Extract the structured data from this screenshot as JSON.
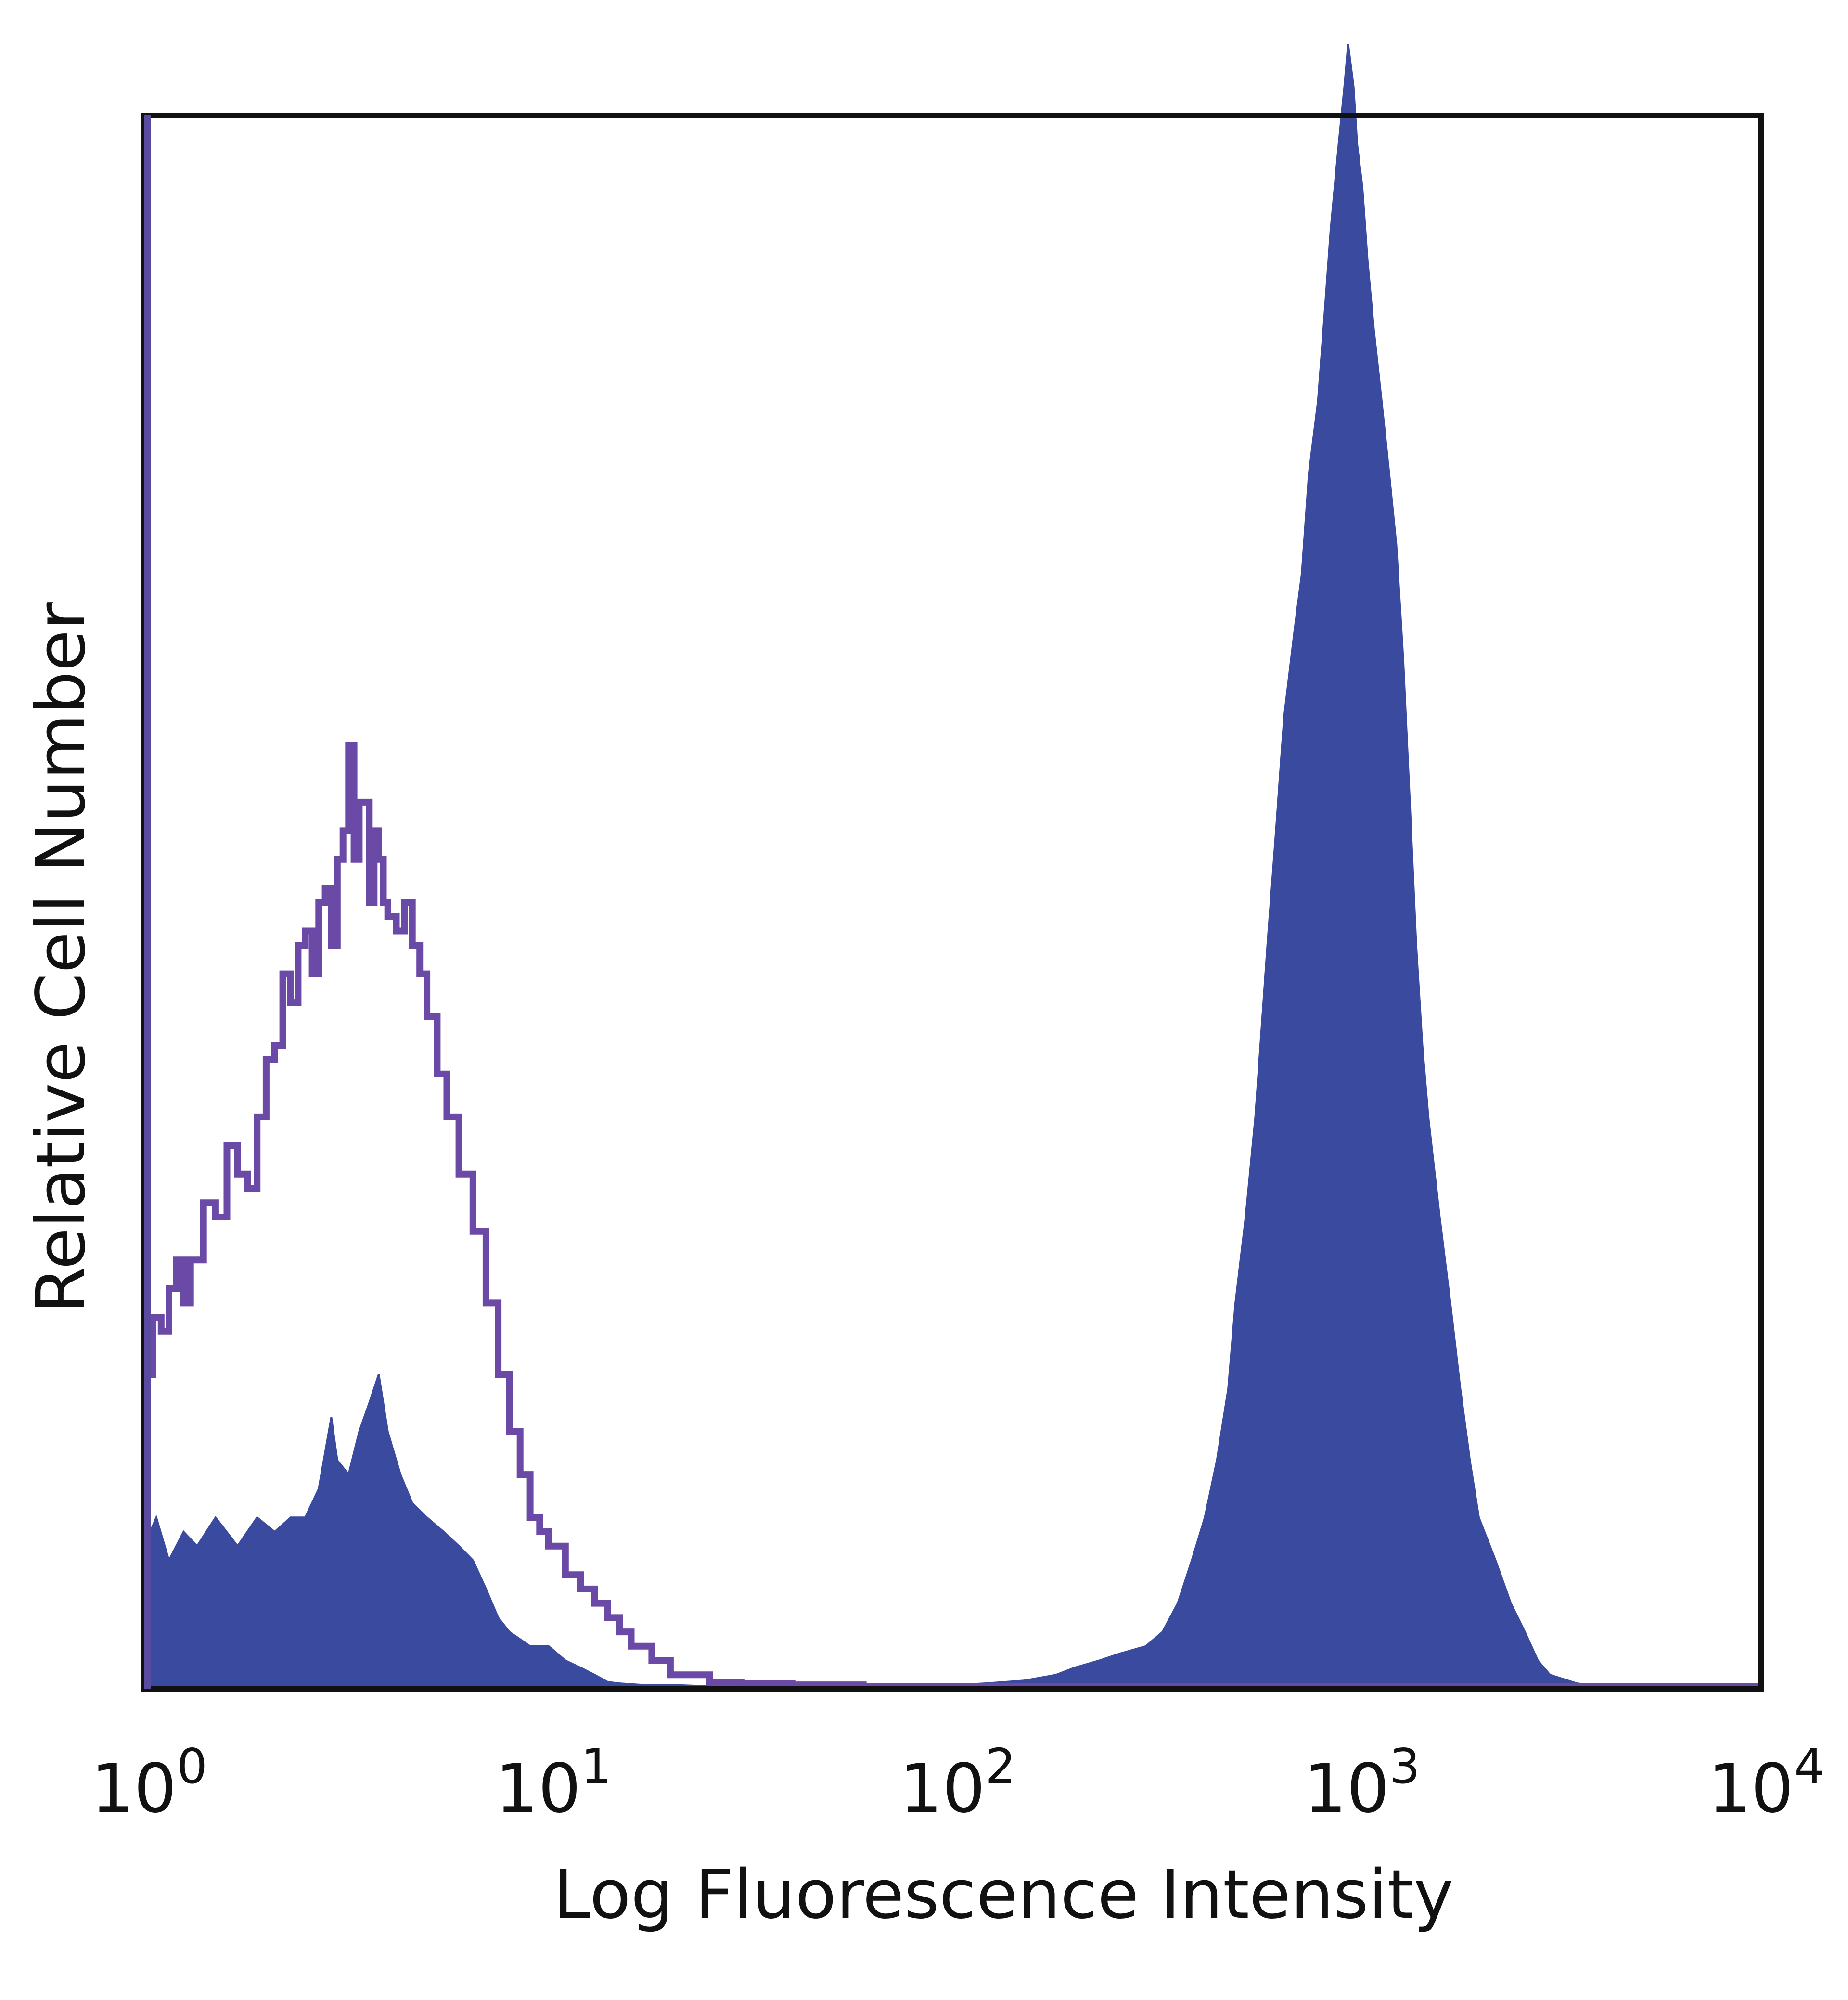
{
  "chart_data": {
    "type": "area",
    "title": "",
    "xlabel": "Log Fluorescence Intensity",
    "ylabel": "Relative Cell Number",
    "x_scale": "log",
    "xlim": [
      1,
      10000
    ],
    "ylim": [
      0,
      1.1
    ],
    "grid": false,
    "legend": "none",
    "x_ticks": [
      {
        "value": 1,
        "base": "10",
        "exp": "0"
      },
      {
        "value": 10,
        "base": "10",
        "exp": "1"
      },
      {
        "value": 100,
        "base": "10",
        "exp": "2"
      },
      {
        "value": 1000,
        "base": "10",
        "exp": "3"
      },
      {
        "value": 10000,
        "base": "10",
        "exp": "4"
      }
    ],
    "series": [
      {
        "style": "filled",
        "color": "#3a4b9f",
        "x": [
          1.0,
          1.07,
          1.15,
          1.25,
          1.35,
          1.5,
          1.7,
          1.9,
          2.1,
          2.3,
          2.5,
          2.7,
          2.9,
          3.0,
          3.2,
          3.4,
          3.6,
          3.8,
          4.0,
          4.3,
          4.6,
          5.0,
          5.5,
          6.0,
          6.5,
          7.0,
          7.5,
          8.0,
          9.0,
          10,
          11,
          12,
          13,
          14,
          15,
          17,
          20,
          25,
          30,
          40,
          50,
          70,
          90,
          120,
          150,
          180,
          200,
          230,
          260,
          300,
          330,
          360,
          390,
          420,
          450,
          480,
          500,
          530,
          560,
          600,
          630,
          660,
          700,
          730,
          760,
          800,
          830,
          860,
          900,
          930,
          950,
          980,
          1000,
          1030,
          1060,
          1100,
          1150,
          1200,
          1250,
          1300,
          1350,
          1400,
          1450,
          1500,
          1600,
          1700,
          1800,
          1900,
          2000,
          2200,
          2400,
          2600,
          2800,
          3000,
          3500,
          4000,
          6000,
          10000
        ],
        "y": [
          0.1,
          0.12,
          0.09,
          0.11,
          0.1,
          0.12,
          0.1,
          0.12,
          0.11,
          0.12,
          0.12,
          0.14,
          0.19,
          0.16,
          0.15,
          0.18,
          0.2,
          0.22,
          0.18,
          0.15,
          0.13,
          0.12,
          0.11,
          0.1,
          0.09,
          0.07,
          0.05,
          0.04,
          0.03,
          0.03,
          0.02,
          0.015,
          0.01,
          0.005,
          0.004,
          0.003,
          0.003,
          0.002,
          0.002,
          0.001,
          0.002,
          0.003,
          0.002,
          0.004,
          0.006,
          0.01,
          0.015,
          0.02,
          0.025,
          0.03,
          0.04,
          0.06,
          0.09,
          0.12,
          0.16,
          0.21,
          0.27,
          0.33,
          0.4,
          0.52,
          0.6,
          0.68,
          0.74,
          0.78,
          0.85,
          0.9,
          0.96,
          1.02,
          1.08,
          1.12,
          1.15,
          1.12,
          1.08,
          1.05,
          1.0,
          0.95,
          0.9,
          0.85,
          0.8,
          0.72,
          0.62,
          0.52,
          0.45,
          0.4,
          0.33,
          0.27,
          0.21,
          0.16,
          0.12,
          0.09,
          0.06,
          0.04,
          0.02,
          0.01,
          0.004,
          0.002,
          0.0,
          0.0
        ]
      },
      {
        "style": "outline",
        "color": "#6a4aa6",
        "x": [
          1.0,
          1.05,
          1.1,
          1.15,
          1.2,
          1.25,
          1.3,
          1.4,
          1.5,
          1.6,
          1.7,
          1.8,
          1.9,
          2.0,
          2.1,
          2.2,
          2.3,
          2.4,
          2.5,
          2.6,
          2.7,
          2.8,
          2.9,
          3.0,
          3.1,
          3.2,
          3.3,
          3.4,
          3.5,
          3.6,
          3.7,
          3.8,
          3.9,
          4.0,
          4.2,
          4.4,
          4.6,
          4.8,
          5.0,
          5.3,
          5.6,
          6.0,
          6.5,
          7.0,
          7.5,
          8.0,
          8.5,
          9.0,
          9.5,
          10,
          11,
          12,
          13,
          14,
          15,
          16,
          18,
          20,
          25,
          30,
          40,
          60,
          80,
          100,
          150,
          200,
          300,
          500,
          1000,
          2000,
          5000,
          10000
        ],
        "y": [
          0.22,
          0.26,
          0.25,
          0.28,
          0.3,
          0.27,
          0.3,
          0.34,
          0.33,
          0.38,
          0.36,
          0.35,
          0.4,
          0.44,
          0.45,
          0.5,
          0.48,
          0.52,
          0.53,
          0.5,
          0.55,
          0.56,
          0.52,
          0.58,
          0.6,
          0.66,
          0.58,
          0.62,
          0.62,
          0.55,
          0.6,
          0.58,
          0.55,
          0.54,
          0.53,
          0.55,
          0.52,
          0.5,
          0.47,
          0.43,
          0.4,
          0.36,
          0.32,
          0.27,
          0.22,
          0.18,
          0.15,
          0.12,
          0.11,
          0.1,
          0.08,
          0.07,
          0.06,
          0.05,
          0.04,
          0.03,
          0.02,
          0.01,
          0.005,
          0.004,
          0.003,
          0.002,
          0.002,
          0.002,
          0.002,
          0.002,
          0.002,
          0.002,
          0.002,
          0.002,
          0.002,
          0.002
        ]
      }
    ]
  }
}
